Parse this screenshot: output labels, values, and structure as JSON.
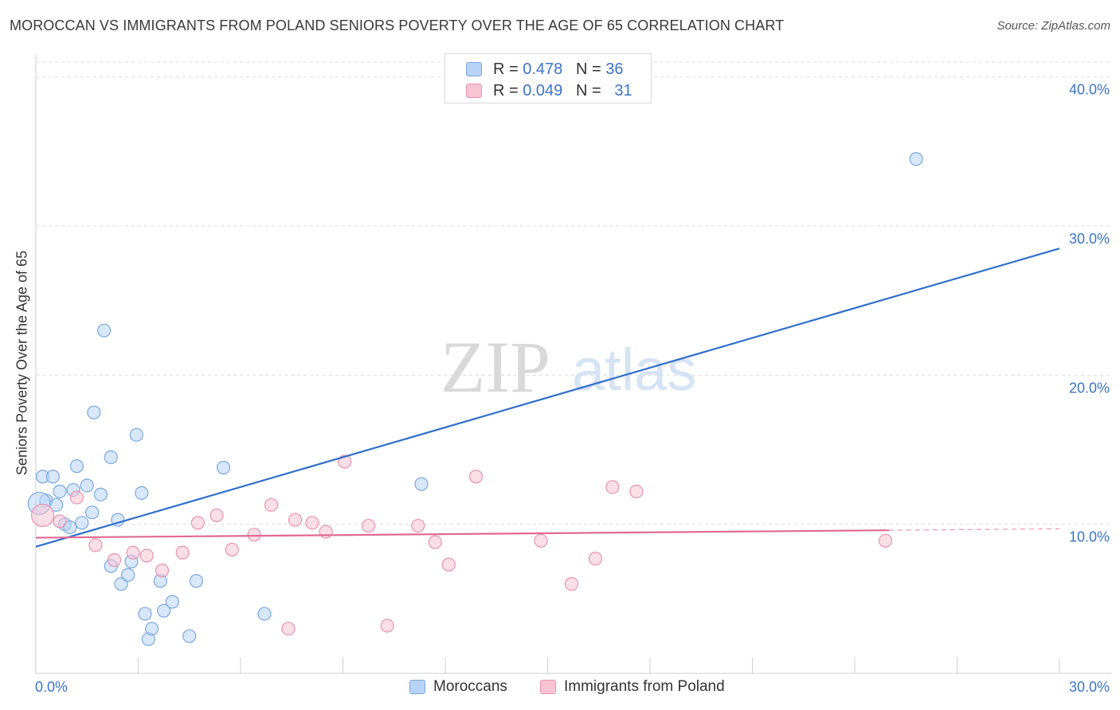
{
  "title": "MOROCCAN VS IMMIGRANTS FROM POLAND SENIORS POVERTY OVER THE AGE OF 65 CORRELATION CHART",
  "source": "Source: ZipAtlas.com",
  "watermark": {
    "zip": "ZIP",
    "atlas": "atlas"
  },
  "legend_top": [
    {
      "r_label": "R = ",
      "r_value": "0.478",
      "n_label": "N = ",
      "n_value": "36"
    },
    {
      "r_label": "R = ",
      "r_value": "0.049",
      "n_label": "N = ",
      "n_value": "31"
    }
  ],
  "bottom_legend": [
    {
      "label": "Moroccans"
    },
    {
      "label": "Immigrants from Poland"
    }
  ],
  "colors": {
    "blue_fill": "#b8d3f5",
    "blue_stroke": "#7aa8e0",
    "blue_line": "#2f6fcc",
    "pink_fill": "#f8c4d4",
    "pink_stroke": "#e892ad",
    "pink_line": "#e06a93",
    "tick_text": "#3b74c9",
    "grid": "#dcdcdc"
  },
  "chart_data": {
    "type": "scatter",
    "title": "MOROCCAN VS IMMIGRANTS FROM POLAND SENIORS POVERTY OVER THE AGE OF 65 CORRELATION CHART",
    "xlabel": "",
    "ylabel": "Seniors Poverty Over the Age of 65",
    "xlim": [
      0,
      30
    ],
    "ylim": [
      0,
      41
    ],
    "x_tick_labels": [
      "0.0%",
      "30.0%"
    ],
    "y_ticks": [
      10,
      20,
      30,
      40
    ],
    "y_tick_labels": [
      "10.0%",
      "20.0%",
      "30.0%",
      "40.0%"
    ],
    "grid": true,
    "legend_position": "top-center",
    "series": [
      {
        "name": "Moroccans",
        "r": 0.478,
        "n": 36,
        "trend": {
          "x": [
            0,
            30
          ],
          "y": [
            8.5,
            28.5
          ]
        },
        "points": [
          {
            "x": 0.2,
            "y": 13.2
          },
          {
            "x": 0.3,
            "y": 11.6
          },
          {
            "x": 0.5,
            "y": 13.2
          },
          {
            "x": 0.6,
            "y": 11.3
          },
          {
            "x": 0.7,
            "y": 12.2
          },
          {
            "x": 0.85,
            "y": 10.0
          },
          {
            "x": 1.0,
            "y": 9.8
          },
          {
            "x": 1.1,
            "y": 12.3
          },
          {
            "x": 1.2,
            "y": 13.9
          },
          {
            "x": 1.35,
            "y": 10.1
          },
          {
            "x": 1.5,
            "y": 12.6
          },
          {
            "x": 1.65,
            "y": 10.8
          },
          {
            "x": 1.7,
            "y": 17.5
          },
          {
            "x": 1.9,
            "y": 12.0
          },
          {
            "x": 2.0,
            "y": 23.0
          },
          {
            "x": 2.2,
            "y": 14.5
          },
          {
            "x": 2.2,
            "y": 7.2
          },
          {
            "x": 2.4,
            "y": 10.3
          },
          {
            "x": 2.5,
            "y": 6.0
          },
          {
            "x": 2.7,
            "y": 6.6
          },
          {
            "x": 2.8,
            "y": 7.5
          },
          {
            "x": 2.95,
            "y": 16.0
          },
          {
            "x": 3.1,
            "y": 12.1
          },
          {
            "x": 3.2,
            "y": 4.0
          },
          {
            "x": 3.3,
            "y": 2.3
          },
          {
            "x": 3.4,
            "y": 3.0
          },
          {
            "x": 3.65,
            "y": 6.2
          },
          {
            "x": 3.75,
            "y": 4.2
          },
          {
            "x": 4.0,
            "y": 4.8
          },
          {
            "x": 4.5,
            "y": 2.5
          },
          {
            "x": 4.7,
            "y": 6.2
          },
          {
            "x": 5.5,
            "y": 13.8
          },
          {
            "x": 6.7,
            "y": 4.0
          },
          {
            "x": 11.3,
            "y": 12.7
          },
          {
            "x": 25.8,
            "y": 34.5
          },
          {
            "x": 0.1,
            "y": 11.4
          }
        ]
      },
      {
        "name": "Immigrants from Poland",
        "r": 0.049,
        "n": 31,
        "trend": {
          "x": [
            0,
            25
          ],
          "y": [
            9.1,
            9.6
          ]
        },
        "points": [
          {
            "x": 0.2,
            "y": 10.6
          },
          {
            "x": 0.7,
            "y": 10.2
          },
          {
            "x": 1.2,
            "y": 11.8
          },
          {
            "x": 1.75,
            "y": 8.6
          },
          {
            "x": 2.3,
            "y": 7.6
          },
          {
            "x": 2.85,
            "y": 8.1
          },
          {
            "x": 3.25,
            "y": 7.9
          },
          {
            "x": 3.7,
            "y": 6.9
          },
          {
            "x": 4.3,
            "y": 8.1
          },
          {
            "x": 4.75,
            "y": 10.1
          },
          {
            "x": 5.3,
            "y": 10.6
          },
          {
            "x": 5.75,
            "y": 8.3
          },
          {
            "x": 6.4,
            "y": 9.3
          },
          {
            "x": 6.9,
            "y": 11.3
          },
          {
            "x": 7.4,
            "y": 3.0
          },
          {
            "x": 7.6,
            "y": 10.3
          },
          {
            "x": 8.1,
            "y": 10.1
          },
          {
            "x": 8.5,
            "y": 9.5
          },
          {
            "x": 9.05,
            "y": 14.2
          },
          {
            "x": 9.75,
            "y": 9.9
          },
          {
            "x": 10.3,
            "y": 3.2
          },
          {
            "x": 11.2,
            "y": 9.9
          },
          {
            "x": 11.7,
            "y": 8.8
          },
          {
            "x": 12.1,
            "y": 7.3
          },
          {
            "x": 12.9,
            "y": 13.2
          },
          {
            "x": 14.8,
            "y": 8.9
          },
          {
            "x": 15.7,
            "y": 6.0
          },
          {
            "x": 16.4,
            "y": 7.7
          },
          {
            "x": 16.9,
            "y": 12.5
          },
          {
            "x": 17.6,
            "y": 12.2
          },
          {
            "x": 24.9,
            "y": 8.9
          }
        ]
      }
    ]
  }
}
